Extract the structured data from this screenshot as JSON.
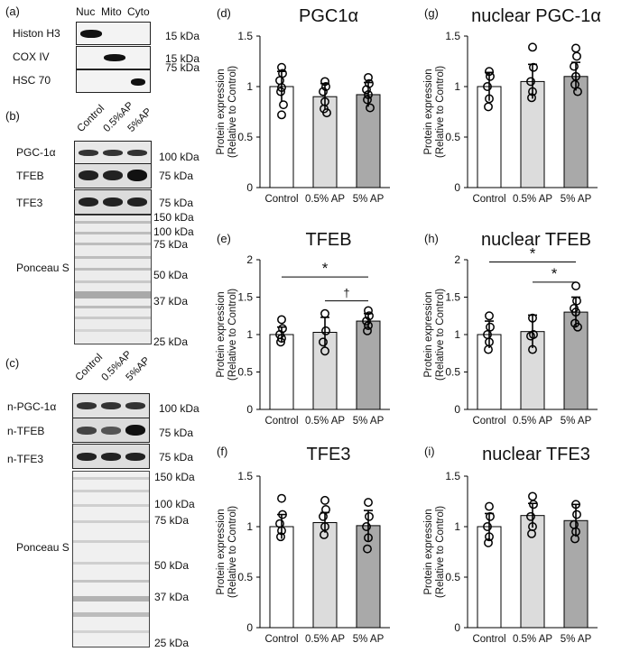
{
  "figure": {
    "panels": {
      "a": "(a)",
      "b": "(b)",
      "c": "(c)",
      "d": "(d)",
      "e": "(e)",
      "f": "(f)",
      "g": "(g)",
      "h": "(h)",
      "i": "(i)"
    },
    "blot_a": {
      "lanes": [
        "Nuc",
        "Mito",
        "Cyto"
      ],
      "rows": [
        {
          "label": "Histon H3",
          "marker": "15 kDa"
        },
        {
          "label": "COX IV",
          "marker": "15 kDa"
        },
        {
          "label": "HSC 70",
          "marker": "75 kDa"
        }
      ]
    },
    "blot_b": {
      "lanes": [
        "Control",
        "0.5%AP",
        "5%AP"
      ],
      "rows": [
        {
          "label": "PGC-1α",
          "marker": "100 kDa"
        },
        {
          "label": "TFEB",
          "marker": "75 kDa"
        },
        {
          "label": "TFE3",
          "marker": "75 kDa"
        }
      ],
      "ponceau_label": "Ponceau S",
      "ponceau_markers": [
        "150 kDa",
        "100 kDa",
        "75 kDa",
        "50 kDa",
        "37 kDa",
        "25 kDa"
      ]
    },
    "blot_c": {
      "lanes": [
        "Control",
        "0.5%AP",
        "5%AP"
      ],
      "rows": [
        {
          "label": "n-PGC-1α",
          "marker": "100 kDa"
        },
        {
          "label": "n-TFEB",
          "marker": "75 kDa"
        },
        {
          "label": "n-TFE3",
          "marker": "75 kDa"
        }
      ],
      "ponceau_label": "Ponceau S",
      "ponceau_markers": [
        "150 kDa",
        "100 kDa",
        "75 kDa",
        "50 kDa",
        "37 kDa",
        "25 kDa"
      ]
    }
  },
  "chart_data": [
    {
      "id": "d",
      "type": "bar",
      "title": "PGC1α",
      "ylabel": "Protein expression (Relative to Control)",
      "categories": [
        "Control",
        "0.5% AP",
        "5% AP"
      ],
      "values": [
        1.0,
        0.9,
        0.92
      ],
      "errors": [
        0.15,
        0.13,
        0.12
      ],
      "ylim": [
        0,
        1.5
      ],
      "yticks": [
        "0",
        "0.5",
        "1",
        "1.5"
      ],
      "bar_colors": [
        "#ffffff",
        "#dcdcdc",
        "#a9a9a9"
      ],
      "points": [
        [
          1.19,
          1.13,
          1.06,
          0.99,
          0.95,
          0.82,
          0.72
        ],
        [
          1.05,
          1.0,
          0.95,
          0.85,
          0.78,
          0.74
        ],
        [
          1.09,
          1.03,
          0.97,
          0.92,
          0.87,
          0.79
        ]
      ],
      "significance": []
    },
    {
      "id": "e",
      "type": "bar",
      "title": "TFEB",
      "ylabel": "Protein expression (Relative to Control)",
      "categories": [
        "Control",
        "0.5% AP",
        "5% AP"
      ],
      "values": [
        1.0,
        1.03,
        1.18
      ],
      "errors": [
        0.1,
        0.2,
        0.1
      ],
      "ylim": [
        0,
        2
      ],
      "yticks": [
        "0",
        "0.5",
        "1",
        "1.5",
        "2"
      ],
      "bar_colors": [
        "#ffffff",
        "#dcdcdc",
        "#a9a9a9"
      ],
      "points": [
        [
          1.2,
          1.08,
          1.0,
          0.95,
          0.9
        ],
        [
          1.28,
          1.05,
          0.9,
          0.78
        ],
        [
          1.32,
          1.25,
          1.18,
          1.12,
          1.05
        ]
      ],
      "significance": [
        {
          "from": 0,
          "to": 2,
          "level": 1.77,
          "symbol": "*"
        },
        {
          "from": 1,
          "to": 2,
          "level": 1.45,
          "symbol": "†"
        }
      ]
    },
    {
      "id": "f",
      "type": "bar",
      "title": "TFE3",
      "ylabel": "Protein expression (Relative to Control)",
      "categories": [
        "Control",
        "0.5% AP",
        "5% AP"
      ],
      "values": [
        1.0,
        1.04,
        1.01
      ],
      "errors": [
        0.12,
        0.1,
        0.15
      ],
      "ylim": [
        0,
        1.5
      ],
      "yticks": [
        "0",
        "0.5",
        "1",
        "1.5"
      ],
      "bar_colors": [
        "#ffffff",
        "#dcdcdc",
        "#a9a9a9"
      ],
      "points": [
        [
          1.28,
          1.12,
          1.03,
          0.96,
          0.9
        ],
        [
          1.26,
          1.17,
          1.1,
          1.0,
          0.92
        ],
        [
          1.24,
          1.1,
          1.0,
          0.89,
          0.78
        ]
      ],
      "significance": []
    },
    {
      "id": "g",
      "type": "bar",
      "title": "nuclear PGC-1α",
      "ylabel": "Protein expression (Relative to Control)",
      "categories": [
        "Control",
        "0.5% AP",
        "5% AP"
      ],
      "values": [
        1.0,
        1.05,
        1.1
      ],
      "errors": [
        0.14,
        0.17,
        0.14
      ],
      "ylim": [
        0,
        1.5
      ],
      "yticks": [
        "0",
        "0.5",
        "1",
        "1.5"
      ],
      "bar_colors": [
        "#ffffff",
        "#dcdcdc",
        "#a9a9a9"
      ],
      "points": [
        [
          1.15,
          1.1,
          1.0,
          0.88,
          0.8
        ],
        [
          1.39,
          1.19,
          1.05,
          0.95,
          0.89
        ],
        [
          1.38,
          1.3,
          1.2,
          1.1,
          1.02,
          0.95
        ]
      ],
      "significance": []
    },
    {
      "id": "h",
      "type": "bar",
      "title": "nuclear TFEB",
      "ylabel": "Protein expression (Relative to Control)",
      "categories": [
        "Control",
        "0.5% AP",
        "5% AP"
      ],
      "values": [
        1.0,
        1.04,
        1.3
      ],
      "errors": [
        0.18,
        0.22,
        0.2
      ],
      "ylim": [
        0,
        2
      ],
      "yticks": [
        "0",
        "0.5",
        "1",
        "1.5",
        "2"
      ],
      "bar_colors": [
        "#ffffff",
        "#dcdcdc",
        "#a9a9a9"
      ],
      "points": [
        [
          1.25,
          1.1,
          1.0,
          0.9,
          0.8
        ],
        [
          1.22,
          1.0,
          0.98,
          0.8
        ],
        [
          1.65,
          1.45,
          1.35,
          1.3,
          1.15,
          1.1
        ]
      ],
      "significance": [
        {
          "from": 0,
          "to": 2,
          "level": 1.97,
          "symbol": "*"
        },
        {
          "from": 1,
          "to": 2,
          "level": 1.7,
          "symbol": "*"
        }
      ]
    },
    {
      "id": "i",
      "type": "bar",
      "title": "nuclear TFE3",
      "ylabel": "Protein expression (Relative to Control)",
      "categories": [
        "Control",
        "0.5% AP",
        "5% AP"
      ],
      "values": [
        1.0,
        1.11,
        1.06
      ],
      "errors": [
        0.13,
        0.12,
        0.16
      ],
      "ylim": [
        0,
        1.5
      ],
      "yticks": [
        "0",
        "0.5",
        "1",
        "1.5"
      ],
      "bar_colors": [
        "#ffffff",
        "#dcdcdc",
        "#a9a9a9"
      ],
      "points": [
        [
          1.2,
          1.1,
          1.0,
          0.9,
          0.84
        ],
        [
          1.3,
          1.22,
          1.1,
          1.0,
          0.93
        ],
        [
          1.22,
          1.12,
          1.02,
          0.95,
          0.88
        ]
      ],
      "significance": []
    }
  ]
}
